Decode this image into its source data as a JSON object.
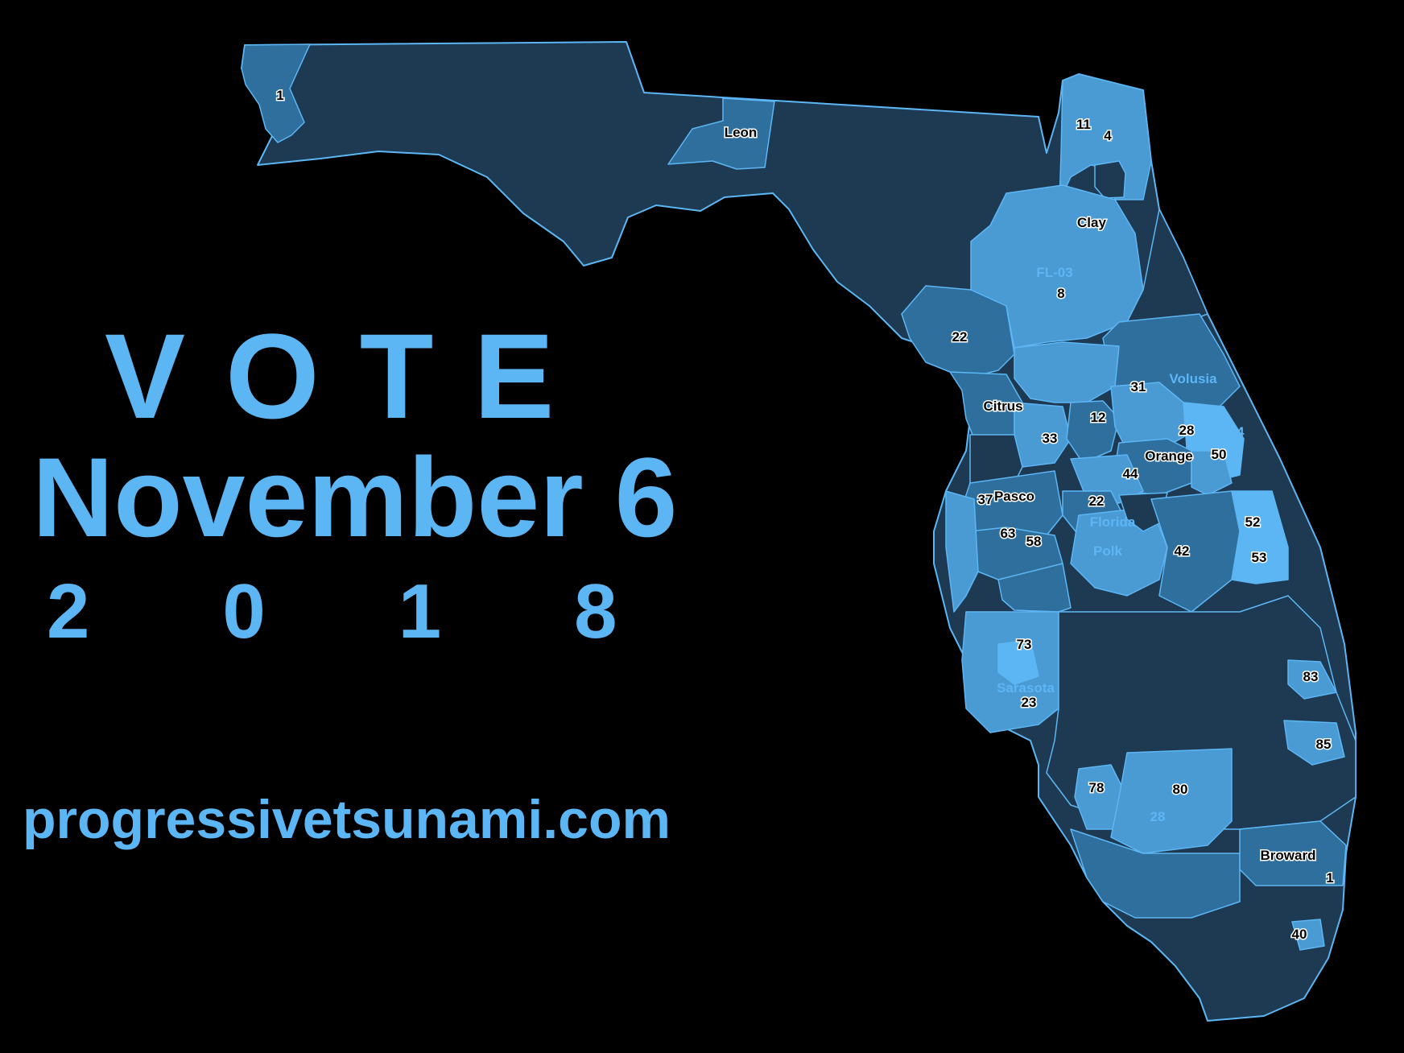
{
  "poster": {
    "vote": "VOTE",
    "date": "November 6",
    "year": "2018",
    "url": "progressivetsunami.com"
  },
  "colors": {
    "background": "#000000",
    "text_accent": "#5db6f4",
    "state_base": "#1e3a52",
    "district_mid": "#2e6f9e",
    "district_light": "#4a9ad4",
    "district_bright": "#5db6f4",
    "border": "#5db6f4"
  },
  "map": {
    "labels": {
      "n1_west": "1",
      "leon": "Leon",
      "n11": "11",
      "n4": "4",
      "clay": "Clay",
      "fl03": "FL-03",
      "n8": "8",
      "n22_north": "22",
      "volusia": "Volusia",
      "n31": "31",
      "citrus": "Citrus",
      "n12": "12",
      "n28_central": "28",
      "n14": "14",
      "n33": "33",
      "orange": "Orange",
      "n50": "50",
      "n44": "44",
      "n37": "37",
      "pasco": "Pasco",
      "n22_central": "22",
      "florida": "Florida",
      "n52": "52",
      "n63": "63",
      "n58": "58",
      "polk": "Polk",
      "n42": "42",
      "n53": "53",
      "n73": "73",
      "n83": "83",
      "sarasota": "Sarasota",
      "n23": "23",
      "n85": "85",
      "n78": "78",
      "n80": "80",
      "n28_south": "28",
      "broward": "Broward",
      "n1_south": "1",
      "n40": "40"
    }
  }
}
